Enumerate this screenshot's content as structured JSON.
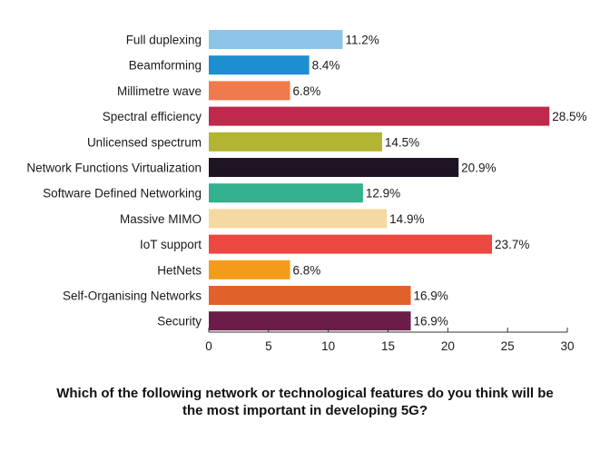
{
  "caption": {
    "line1": "Which of the following network or technological features do you think will be",
    "line2": "the most important in developing 5G?"
  },
  "chart_data": {
    "type": "bar",
    "orientation": "horizontal",
    "categories": [
      "Full duplexing",
      "Beamforming",
      "Millimetre wave",
      "Spectral efficiency",
      "Unlicensed spectrum",
      "Network Functions Virtualization",
      "Software Defined Networking",
      "Massive MIMO",
      "IoT support",
      "HetNets",
      "Self-Organising Networks",
      "Security"
    ],
    "values": [
      11.2,
      8.4,
      6.8,
      28.5,
      14.5,
      20.9,
      12.9,
      14.9,
      23.7,
      6.8,
      16.9,
      16.9
    ],
    "value_labels": [
      "11.2%",
      "8.4%",
      "6.8%",
      "28.5%",
      "14.5%",
      "20.9%",
      "12.9%",
      "14.9%",
      "23.7%",
      "6.8%",
      "16.9%",
      "16.9%"
    ],
    "colors": [
      "#8ec4e8",
      "#1b8fcf",
      "#f07a4b",
      "#c0284c",
      "#b3b432",
      "#1e1424",
      "#33b08e",
      "#f5d9a0",
      "#ec4740",
      "#f59b1c",
      "#e0622a",
      "#6b1d48"
    ],
    "xlim": [
      0,
      30
    ],
    "xticks": [
      "0",
      "5",
      "10",
      "15",
      "20",
      "25",
      "30"
    ],
    "grid": false,
    "legend": "none"
  }
}
